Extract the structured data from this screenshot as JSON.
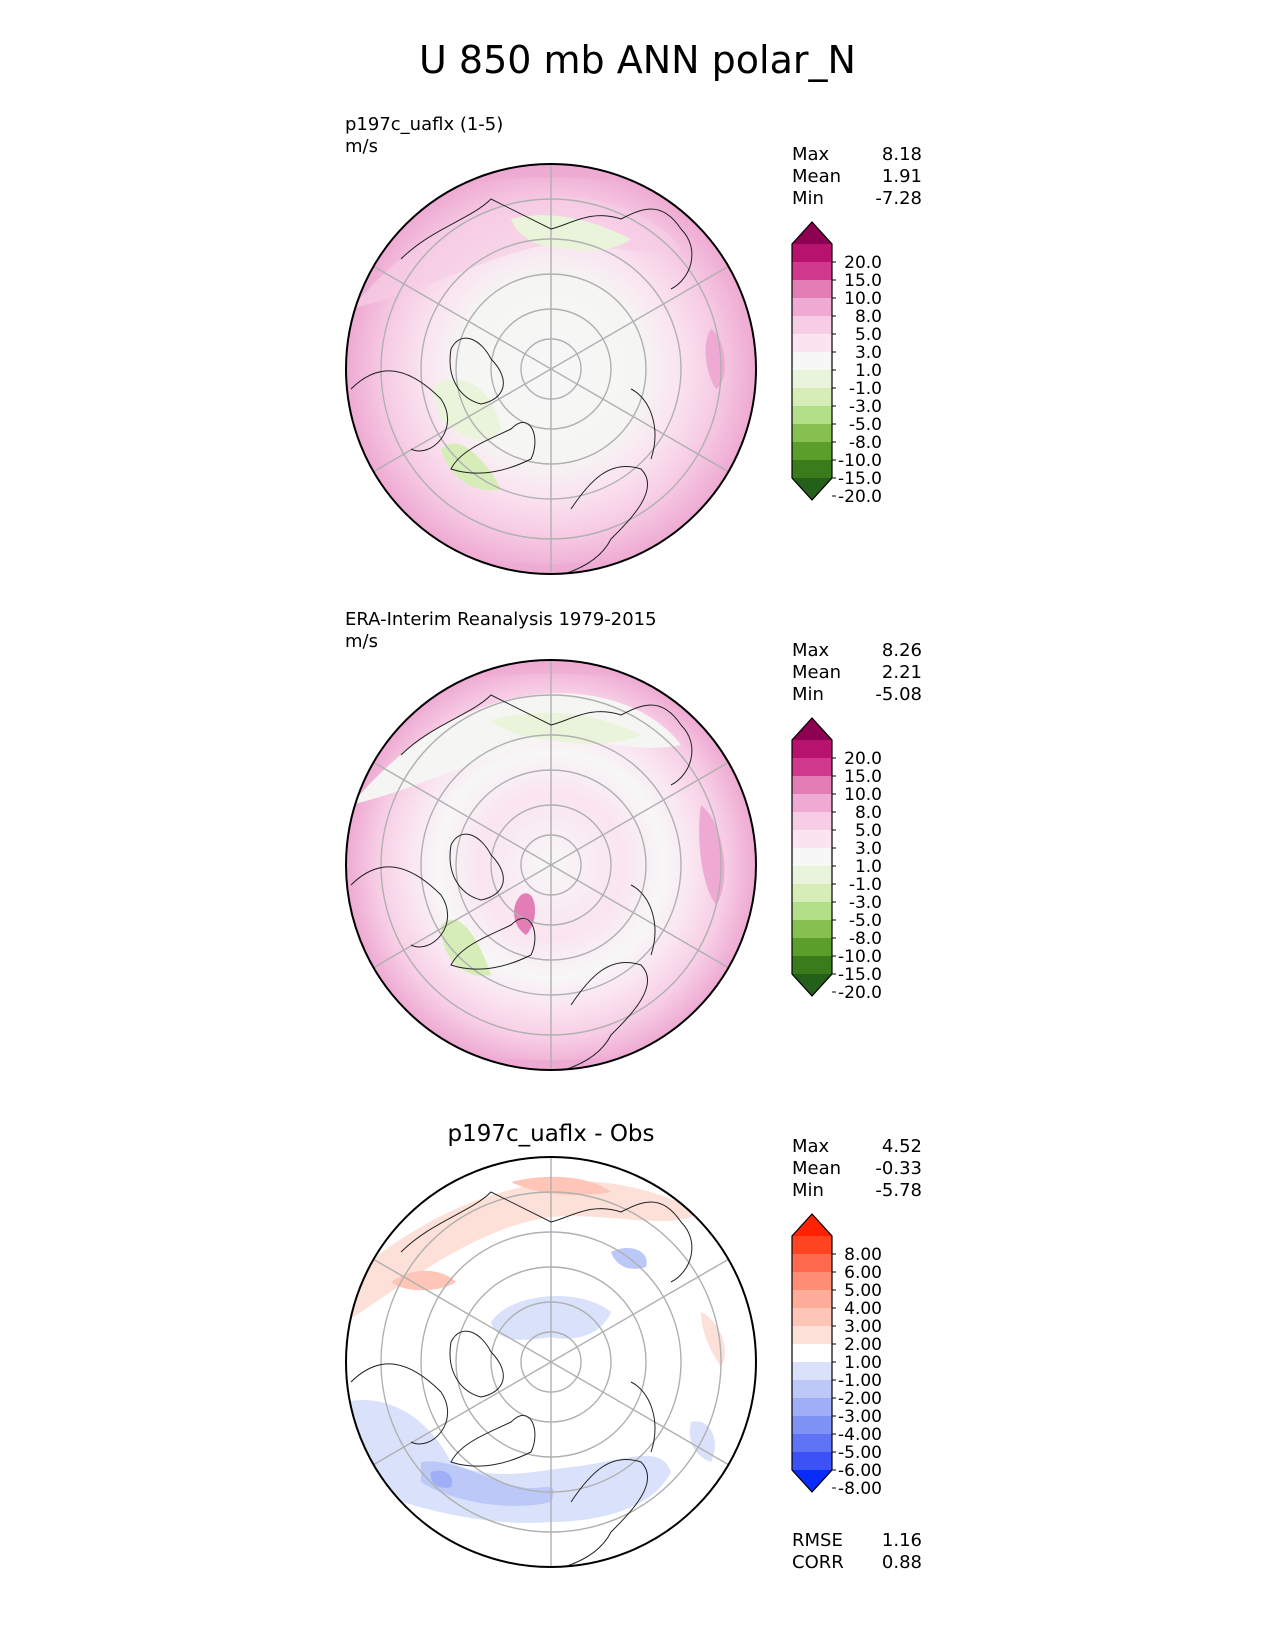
{
  "title": "U 850 mb ANN polar_N",
  "chart_data": [
    {
      "type": "heatmap",
      "projection": "north-polar-stereographic",
      "label": "p197c_uaflx (1-5)",
      "units": "m/s",
      "stats": {
        "max_label": "Max",
        "max": "8.18",
        "mean_label": "Mean",
        "mean": "1.91",
        "min_label": "Min",
        "min": "-7.28"
      },
      "colorbar_ticks": [
        "20.0",
        "15.0",
        "10.0",
        "8.0",
        "5.0",
        "3.0",
        "1.0",
        "-1.0",
        "-3.0",
        "-5.0",
        "-8.0",
        "-10.0",
        "-15.0",
        "-20.0"
      ],
      "colorbar_colors": [
        "#8e0152",
        "#b8126f",
        "#d0388e",
        "#e27db6",
        "#eeaad2",
        "#f7cde5",
        "#fae4f0",
        "#f7f7f7",
        "#eaf4da",
        "#d6edb8",
        "#b1de86",
        "#86c050",
        "#5c9e2c",
        "#3a7b1c",
        "#24601a"
      ]
    },
    {
      "type": "heatmap",
      "projection": "north-polar-stereographic",
      "label": "ERA-Interim Reanalysis 1979-2015",
      "units": "m/s",
      "stats": {
        "max_label": "Max",
        "max": "8.26",
        "mean_label": "Mean",
        "mean": "2.21",
        "min_label": "Min",
        "min": "-5.08"
      },
      "colorbar_ticks": [
        "20.0",
        "15.0",
        "10.0",
        "8.0",
        "5.0",
        "3.0",
        "1.0",
        "-1.0",
        "-3.0",
        "-5.0",
        "-8.0",
        "-10.0",
        "-15.0",
        "-20.0"
      ],
      "colorbar_colors": [
        "#8e0152",
        "#b8126f",
        "#d0388e",
        "#e27db6",
        "#eeaad2",
        "#f7cde5",
        "#fae4f0",
        "#f7f7f7",
        "#eaf4da",
        "#d6edb8",
        "#b1de86",
        "#86c050",
        "#5c9e2c",
        "#3a7b1c",
        "#24601a"
      ]
    },
    {
      "type": "heatmap",
      "projection": "north-polar-stereographic",
      "title": "p197c_uaflx - Obs",
      "stats": {
        "max_label": "Max",
        "max": "4.52",
        "mean_label": "Mean",
        "mean": "-0.33",
        "min_label": "Min",
        "min": "-5.78",
        "rmse_label": "RMSE",
        "rmse": "1.16",
        "corr_label": "CORR",
        "corr": "0.88"
      },
      "colorbar_ticks": [
        "8.00",
        "6.00",
        "5.00",
        "4.00",
        "3.00",
        "2.00",
        "1.00",
        "-1.00",
        "-2.00",
        "-3.00",
        "-4.00",
        "-5.00",
        "-6.00",
        "-8.00"
      ],
      "colorbar_colors": [
        "#ff2200",
        "#ff4422",
        "#ff6a4e",
        "#ff8d76",
        "#ffac9a",
        "#ffc6b8",
        "#fde0d8",
        "#ffffff",
        "#dae2fb",
        "#bcc8f8",
        "#9eaef7",
        "#7f92f6",
        "#5f73f5",
        "#3c52f6",
        "#0a2cfb"
      ]
    }
  ]
}
